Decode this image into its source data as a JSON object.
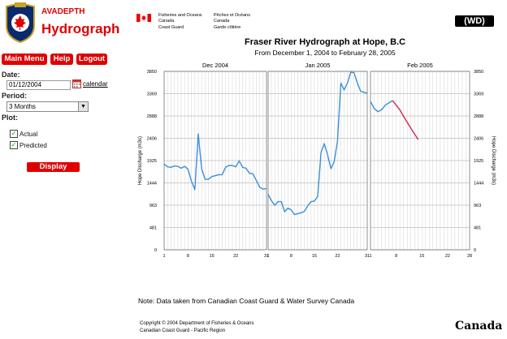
{
  "app": {
    "subtitle": "AVADEPTH",
    "title": "Hydrograph"
  },
  "nav": {
    "main_menu": "Main Menu",
    "help": "Help",
    "logout": "Logout"
  },
  "form": {
    "date_label": "Date:",
    "date_value": "01/12/2004",
    "calendar_link": "calendar",
    "period_label": "Period:",
    "period_value": "3 Months",
    "plot_label": "Plot:",
    "actual_label": "Actual",
    "predicted_label": "Predicted",
    "display_button": "Display"
  },
  "header": {
    "fg_en_1": "Fisheries and Oceans",
    "fg_en_2": "Canada",
    "fg_en_3": "Coast Guard",
    "fg_fr_1": "Pêches et Océans",
    "fg_fr_2": "Canada",
    "fg_fr_3": "Garde côtière",
    "wd_badge": "(WD)"
  },
  "chart": {
    "title": "Fraser River Hydrograph at Hope, B.C",
    "subtitle": "From December 1, 2004 to February 28, 2005"
  },
  "colors": {
    "brand_red": "#e00000",
    "actual": "#3a8fd9",
    "predicted": "#d8234e",
    "grid": "#c8c8c8"
  },
  "chart_data": {
    "type": "line",
    "ylabel_left": "Hope Discharge (m3s)",
    "ylabel_right": "Hope Discharge (m3s)",
    "ylim": [
      0,
      3850
    ],
    "yticks": [
      "3850",
      "3369",
      "2888",
      "2406",
      "1925",
      "1444",
      "963",
      "481",
      "0"
    ],
    "grid": true,
    "panels": [
      {
        "month": "Dec 2004",
        "days": 31,
        "xticks": [
          "1",
          "8",
          "15",
          "22",
          "31"
        ],
        "series": [
          {
            "name": "Actual",
            "x": [
              1,
              2,
              3,
              4,
              5,
              6,
              7,
              8,
              9,
              10,
              11,
              12,
              13,
              14,
              15,
              16,
              17,
              18,
              19,
              20,
              21,
              22,
              23,
              24,
              25,
              26,
              27,
              28,
              29,
              30,
              31
            ],
            "y": [
              1850,
              1790,
              1780,
              1810,
              1800,
              1760,
              1800,
              1740,
              1480,
              1300,
              2500,
              1750,
              1520,
              1520,
              1580,
              1600,
              1620,
              1620,
              1780,
              1820,
              1820,
              1790,
              1920,
              1780,
              1760,
              1650,
              1640,
              1500,
              1350,
              1310,
              1320
            ]
          }
        ]
      },
      {
        "month": "Jan 2005",
        "days": 31,
        "xticks": [
          "1",
          "8",
          "15",
          "22",
          "31"
        ],
        "series": [
          {
            "name": "Actual",
            "x": [
              1,
              2,
              3,
              4,
              5,
              6,
              7,
              8,
              9,
              10,
              11,
              12,
              13,
              14,
              15,
              16,
              17,
              18,
              19,
              20,
              21,
              22,
              23,
              24,
              25,
              26,
              27,
              28,
              29,
              30,
              31
            ],
            "y": [
              1200,
              1060,
              960,
              1040,
              1040,
              820,
              900,
              860,
              760,
              780,
              800,
              830,
              950,
              1040,
              1050,
              1150,
              2100,
              2290,
              2050,
              1750,
              1900,
              2350,
              3600,
              3450,
              3600,
              3830,
              3820,
              3600,
              3420,
              3400,
              3380
            ]
          }
        ]
      },
      {
        "month": "Feb 2005",
        "days": 28,
        "xticks": [
          "1",
          "8",
          "15",
          "22",
          "28"
        ],
        "series": [
          {
            "name": "Actual",
            "x": [
              1,
              2,
              3,
              4,
              5,
              6,
              7
            ],
            "y": [
              3200,
              3050,
              2980,
              3020,
              3120,
              3170,
              3220
            ]
          },
          {
            "name": "Predicted",
            "x": [
              7,
              8,
              9,
              10,
              11,
              12,
              13,
              14
            ],
            "y": [
              3220,
              3120,
              3020,
              2880,
              2750,
              2620,
              2500,
              2380
            ]
          }
        ]
      }
    ]
  },
  "footer": {
    "note": "Note: Data taken from Canadian Coast Guard & Water Survey Canada",
    "copyright_1": "Copyright © 2004 Department of Fisheries & Oceans",
    "copyright_2": "Canadian Coast Guard - Pacific Region",
    "canada_wordmark": "Canada"
  }
}
